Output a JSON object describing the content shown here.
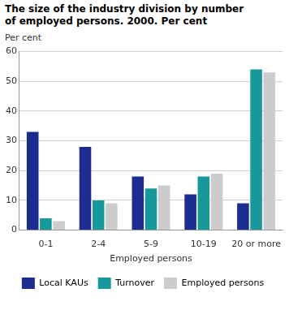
{
  "chart_data": {
    "type": "bar",
    "title": "The size of the industry division by number of employed persons. 2000. Per cent",
    "ylabel": "Per cent",
    "xlabel": "Employed persons",
    "categories": [
      "0-1",
      "2-4",
      "5-9",
      "10-19",
      "20 or more"
    ],
    "series": [
      {
        "name": "Local KAUs",
        "color": "#1c2d8f",
        "values": [
          33,
          28,
          18,
          12,
          9
        ]
      },
      {
        "name": "Turnover",
        "color": "#17999b",
        "values": [
          4,
          10,
          14,
          18,
          54
        ]
      },
      {
        "name": "Employed persons",
        "color": "#cccccc",
        "values": [
          3,
          9,
          15,
          19,
          53
        ]
      }
    ],
    "ylim": [
      0,
      60
    ],
    "yticks": [
      0,
      10,
      20,
      30,
      40,
      50,
      60
    ],
    "grid": true,
    "legend": "bottom"
  }
}
